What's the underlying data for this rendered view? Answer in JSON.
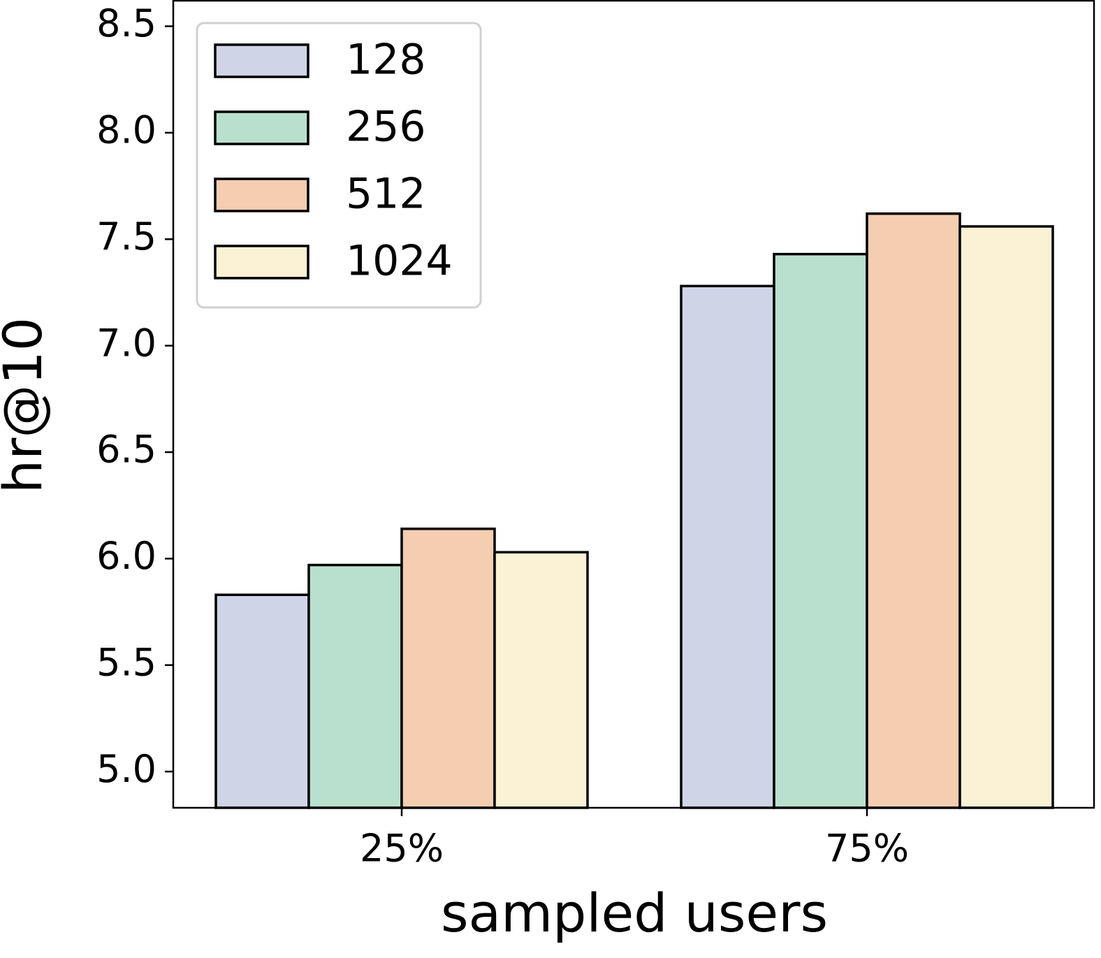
{
  "chart_data": {
    "type": "bar",
    "x_label": "sampled users",
    "y_label": "hr@10",
    "categories": [
      "25%",
      "75%"
    ],
    "series": [
      {
        "name": "128",
        "color": "#cfd5e7",
        "values": [
          5.83,
          7.28
        ]
      },
      {
        "name": "256",
        "color": "#b9e0cf",
        "values": [
          5.97,
          7.43
        ]
      },
      {
        "name": "512",
        "color": "#f5cdb0",
        "values": [
          6.14,
          7.62
        ]
      },
      {
        "name": "1024",
        "color": "#fbf2d5",
        "values": [
          6.03,
          7.56
        ]
      }
    ],
    "ylim": [
      4.83,
      8.62
    ],
    "yticks": [
      {
        "value": 5,
        "label": "5.0"
      },
      5.5,
      {
        "value": 6,
        "label": "6.0"
      },
      6.5,
      {
        "value": 7,
        "label": "7.0"
      },
      7.5,
      {
        "value": 8,
        "label": "8.0"
      },
      8.5
    ],
    "grid": false,
    "legend": "upper left"
  }
}
